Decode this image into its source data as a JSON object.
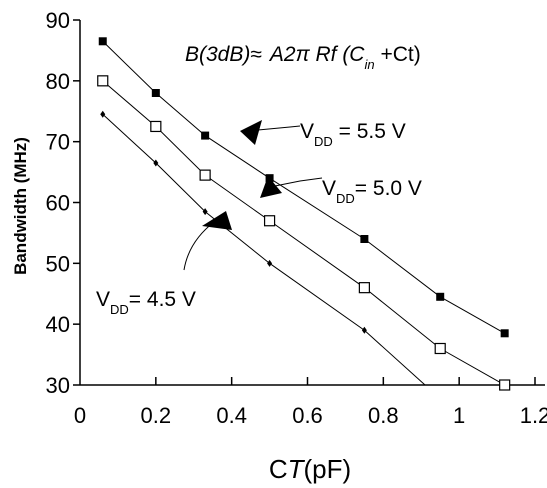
{
  "chart_data": {
    "type": "line",
    "title": "B(3dB)≈ A2π Rf (Cin +Ct)",
    "title_parts": {
      "lhs": "B(3dB)",
      "approx": "≈",
      "rhs_main": "A2π Rf (C",
      "rhs_sub": "in",
      "rhs_tail": " +Ct)"
    },
    "xlabel": "CT(pF)",
    "xlabel_parts": {
      "c": "C",
      "t": "T",
      "rest": "(pF)"
    },
    "ylabel": "Bandwidth (MHz)",
    "xlim": [
      0,
      1.2
    ],
    "ylim": [
      30,
      90
    ],
    "x_ticks": [
      "0",
      "0.2",
      "0.4",
      "0.6",
      "0.8",
      "1",
      "1.2"
    ],
    "y_ticks": [
      "30",
      "40",
      "50",
      "60",
      "70",
      "80",
      "90"
    ],
    "grid": false,
    "series": [
      {
        "name": "VDD = 5.5 V",
        "marker": "filled-square",
        "x": [
          0.06,
          0.2,
          0.33,
          0.5,
          0.75,
          0.95,
          1.12
        ],
        "y": [
          86.5,
          78,
          71,
          64,
          54,
          44.5,
          38.5
        ],
        "label": {
          "prefix": "V",
          "sub": "DD",
          "rest": " = 5.5 V"
        }
      },
      {
        "name": "VDD= 5.0 V",
        "marker": "open-square",
        "x": [
          0.06,
          0.2,
          0.33,
          0.5,
          0.75,
          0.95,
          1.12
        ],
        "y": [
          80,
          72.5,
          64.5,
          57,
          46,
          36,
          30
        ],
        "label": {
          "prefix": "V",
          "sub": "DD",
          "rest": "= 5.0 V"
        }
      },
      {
        "name": "VDD= 4.5 V",
        "marker": "small-diamond",
        "x": [
          0.06,
          0.2,
          0.33,
          0.5,
          0.75
        ],
        "y": [
          74.5,
          66.5,
          58.5,
          50,
          39
        ],
        "line_end": [
          0.91,
          30
        ],
        "label": {
          "prefix": "V",
          "sub": "DD",
          "rest": "= 4.5 V"
        }
      }
    ]
  }
}
